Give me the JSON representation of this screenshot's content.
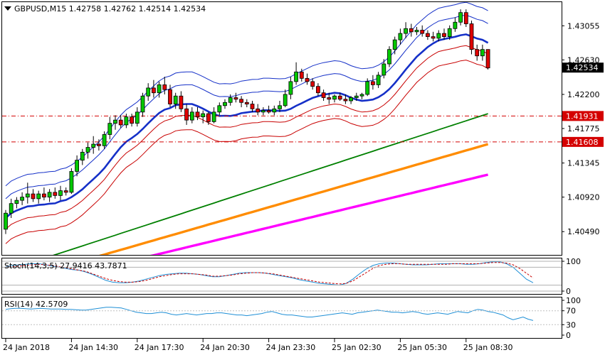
{
  "header": {
    "symbol_line": "GBPUSD,M15  1.42758 1.42762 1.42514 1.42534"
  },
  "chart_data": {
    "type": "candlestick",
    "symbol": "GBPUSD",
    "timeframe": "M15",
    "ohlc_readout": {
      "open": 1.42758,
      "high": 1.42762,
      "low": 1.42514,
      "close": 1.42534
    },
    "price_axis": {
      "range": [
        1.402,
        1.4335
      ],
      "ticks": [
        "1.43055",
        "1.42630",
        "1.42200",
        "1.41775",
        "1.41345",
        "1.40920",
        "1.40490"
      ]
    },
    "current_price": "1.42534",
    "horizontal_levels": [
      {
        "label": "1.41931",
        "value": 1.41931,
        "color": "#d40000"
      },
      {
        "label": "1.41608",
        "value": 1.41608,
        "color": "#d40000"
      }
    ],
    "time_axis": {
      "labels": [
        "24 Jan 2018",
        "24 Jan 14:30",
        "24 Jan 17:30",
        "24 Jan 20:30",
        "24 Jan 23:30",
        "25 Jan 02:30",
        "25 Jan 05:30",
        "25 Jan 08:30"
      ],
      "label_bar_index": [
        0,
        12,
        24,
        36,
        48,
        60,
        72,
        84
      ]
    },
    "colors": {
      "bull": "#00c800",
      "bear": "#e00000"
    },
    "candles": [
      [
        1.4052,
        1.4076,
        1.4046,
        1.4072
      ],
      [
        1.4072,
        1.409,
        1.4066,
        1.4084
      ],
      [
        1.4084,
        1.4092,
        1.4078,
        1.4088
      ],
      [
        1.4088,
        1.4098,
        1.4082,
        1.4092
      ],
      [
        1.4092,
        1.411,
        1.4084,
        1.4096
      ],
      [
        1.4096,
        1.4102,
        1.4086,
        1.409
      ],
      [
        1.409,
        1.41,
        1.4084,
        1.4096
      ],
      [
        1.4096,
        1.4104,
        1.4088,
        1.4092
      ],
      [
        1.4092,
        1.4102,
        1.4086,
        1.4098
      ],
      [
        1.4098,
        1.4104,
        1.409,
        1.4094
      ],
      [
        1.4094,
        1.4106,
        1.4088,
        1.41
      ],
      [
        1.41,
        1.4104,
        1.4094,
        1.4098
      ],
      [
        1.4098,
        1.4128,
        1.4096,
        1.4124
      ],
      [
        1.4124,
        1.4144,
        1.4118,
        1.4138
      ],
      [
        1.4138,
        1.4152,
        1.4132,
        1.4148
      ],
      [
        1.4148,
        1.416,
        1.414,
        1.4154
      ],
      [
        1.4154,
        1.4168,
        1.4146,
        1.4158
      ],
      [
        1.4158,
        1.4164,
        1.415,
        1.4156
      ],
      [
        1.4156,
        1.4174,
        1.4152,
        1.417
      ],
      [
        1.417,
        1.4192,
        1.4164,
        1.4184
      ],
      [
        1.4184,
        1.4194,
        1.4176,
        1.4188
      ],
      [
        1.4188,
        1.4194,
        1.4178,
        1.4182
      ],
      [
        1.4182,
        1.4196,
        1.4178,
        1.4192
      ],
      [
        1.4192,
        1.4196,
        1.418,
        1.4184
      ],
      [
        1.4184,
        1.4204,
        1.418,
        1.4198
      ],
      [
        1.4198,
        1.4222,
        1.4192,
        1.4218
      ],
      [
        1.4218,
        1.4234,
        1.4212,
        1.4228
      ],
      [
        1.4228,
        1.4238,
        1.4216,
        1.4222
      ],
      [
        1.4222,
        1.4236,
        1.4216,
        1.4232
      ],
      [
        1.4232,
        1.4242,
        1.422,
        1.4226
      ],
      [
        1.4226,
        1.4232,
        1.4204,
        1.4208
      ],
      [
        1.4208,
        1.4222,
        1.4202,
        1.4218
      ],
      [
        1.4218,
        1.4224,
        1.4198,
        1.4202
      ],
      [
        1.4202,
        1.4208,
        1.4182,
        1.4188
      ],
      [
        1.4188,
        1.4204,
        1.4184,
        1.4198
      ],
      [
        1.4198,
        1.4204,
        1.4188,
        1.4192
      ],
      [
        1.4192,
        1.42,
        1.4184,
        1.4196
      ],
      [
        1.4196,
        1.4198,
        1.4182,
        1.4186
      ],
      [
        1.4186,
        1.4204,
        1.4184,
        1.4198
      ],
      [
        1.4198,
        1.421,
        1.4194,
        1.4206
      ],
      [
        1.4206,
        1.4214,
        1.4202,
        1.421
      ],
      [
        1.421,
        1.422,
        1.4206,
        1.4216
      ],
      [
        1.4216,
        1.4222,
        1.421,
        1.4214
      ],
      [
        1.4214,
        1.4218,
        1.4204,
        1.421
      ],
      [
        1.421,
        1.4214,
        1.4204,
        1.4208
      ],
      [
        1.4208,
        1.4212,
        1.4198,
        1.4202
      ],
      [
        1.4202,
        1.4208,
        1.4194,
        1.4198
      ],
      [
        1.4198,
        1.4204,
        1.4194,
        1.42
      ],
      [
        1.42,
        1.4206,
        1.4196,
        1.4198
      ],
      [
        1.4198,
        1.4206,
        1.4194,
        1.4202
      ],
      [
        1.4202,
        1.4212,
        1.4198,
        1.4206
      ],
      [
        1.4206,
        1.4226,
        1.4204,
        1.422
      ],
      [
        1.422,
        1.4242,
        1.4214,
        1.4236
      ],
      [
        1.4236,
        1.426,
        1.4232,
        1.4248
      ],
      [
        1.4248,
        1.4252,
        1.4236,
        1.424
      ],
      [
        1.424,
        1.4246,
        1.4232,
        1.4236
      ],
      [
        1.4236,
        1.424,
        1.4226,
        1.423
      ],
      [
        1.423,
        1.4234,
        1.4218,
        1.4222
      ],
      [
        1.4222,
        1.4226,
        1.4212,
        1.4216
      ],
      [
        1.4216,
        1.4222,
        1.4208,
        1.4214
      ],
      [
        1.4214,
        1.422,
        1.421,
        1.4218
      ],
      [
        1.4218,
        1.4222,
        1.4212,
        1.4214
      ],
      [
        1.4214,
        1.422,
        1.4208,
        1.4212
      ],
      [
        1.4212,
        1.4218,
        1.4208,
        1.4216
      ],
      [
        1.4216,
        1.4222,
        1.4212,
        1.4218
      ],
      [
        1.4218,
        1.4222,
        1.4214,
        1.422
      ],
      [
        1.422,
        1.424,
        1.4218,
        1.4236
      ],
      [
        1.4236,
        1.4244,
        1.4226,
        1.4232
      ],
      [
        1.4232,
        1.4248,
        1.4228,
        1.4244
      ],
      [
        1.4244,
        1.4264,
        1.424,
        1.4258
      ],
      [
        1.4258,
        1.428,
        1.4254,
        1.4276
      ],
      [
        1.4276,
        1.4292,
        1.427,
        1.4288
      ],
      [
        1.4288,
        1.4302,
        1.4282,
        1.4296
      ],
      [
        1.4296,
        1.431,
        1.429,
        1.4302
      ],
      [
        1.4302,
        1.4308,
        1.4292,
        1.4298
      ],
      [
        1.4298,
        1.4304,
        1.4294,
        1.43
      ],
      [
        1.43,
        1.4306,
        1.4292,
        1.4296
      ],
      [
        1.4296,
        1.43,
        1.4288,
        1.4292
      ],
      [
        1.4292,
        1.4298,
        1.4286,
        1.429
      ],
      [
        1.429,
        1.43,
        1.4286,
        1.4296
      ],
      [
        1.4296,
        1.4302,
        1.4288,
        1.4292
      ],
      [
        1.4292,
        1.4306,
        1.4288,
        1.4302
      ],
      [
        1.4302,
        1.4316,
        1.4298,
        1.431
      ],
      [
        1.431,
        1.4326,
        1.4306,
        1.4322
      ],
      [
        1.4322,
        1.4326,
        1.4304,
        1.4308
      ],
      [
        1.4308,
        1.4312,
        1.427,
        1.4276
      ],
      [
        1.4276,
        1.4282,
        1.4262,
        1.4268
      ],
      [
        1.4268,
        1.4282,
        1.4262,
        1.4276
      ],
      [
        1.4276,
        1.4276,
        1.4251,
        1.4253
      ]
    ],
    "moving_averages": [
      {
        "color": "#1530c8",
        "width": 2.6,
        "start": 1.4044,
        "end": 1.427,
        "bow": 0.0008
      },
      {
        "color": "#008000",
        "width": 1.8,
        "start": 1.4,
        "end": 1.4196,
        "bow": 0.0
      },
      {
        "color": "#ff8c00",
        "width": 3.4,
        "start": 1.3985,
        "end": 1.4158,
        "bow": 0.0
      },
      {
        "color": "#ff00ff",
        "width": 3.4,
        "start": 1.3975,
        "end": 1.412,
        "bow": 0.0
      }
    ],
    "envelopes": [
      {
        "color": "#1530c8",
        "offset": 0.0012,
        "width": 1
      },
      {
        "color": "#1530c8",
        "offset": 0.0028,
        "width": 1
      },
      {
        "color": "#c80000",
        "offset": -0.0016,
        "width": 1
      },
      {
        "color": "#c80000",
        "offset": -0.0034,
        "width": 1
      }
    ],
    "stochastic": {
      "label": "Stoch(14,3,5) 27.9416 43.7871",
      "range": [
        0,
        100
      ],
      "ticks": [
        "100",
        "0"
      ],
      "main_color": "#1e8fd6",
      "signal_color": "#c80000",
      "main": [
        82,
        86,
        88,
        90,
        92,
        92,
        88,
        84,
        80,
        76,
        72,
        70,
        64,
        56,
        46,
        36,
        30,
        28,
        28,
        30,
        34,
        40,
        46,
        52,
        56,
        58,
        60,
        60,
        58,
        56,
        52,
        48,
        48,
        52,
        56,
        60,
        62,
        62,
        62,
        60,
        56,
        52,
        48,
        44,
        38,
        34,
        30,
        26,
        24,
        22,
        20,
        26,
        40,
        58,
        74,
        86,
        92,
        94,
        94,
        92,
        90,
        88,
        88,
        88,
        90,
        92,
        92,
        92,
        92,
        90,
        90,
        92,
        96,
        98,
        98,
        92,
        80,
        60,
        40,
        28
      ],
      "signal": [
        80,
        82,
        84,
        86,
        88,
        90,
        88,
        86,
        82,
        78,
        74,
        70,
        66,
        58,
        50,
        42,
        36,
        32,
        30,
        30,
        32,
        36,
        42,
        48,
        52,
        56,
        58,
        58,
        58,
        56,
        54,
        50,
        50,
        52,
        54,
        58,
        60,
        62,
        62,
        60,
        58,
        54,
        50,
        46,
        42,
        38,
        34,
        30,
        28,
        26,
        24,
        26,
        34,
        48,
        62,
        76,
        86,
        90,
        92,
        92,
        90,
        90,
        90,
        90,
        90,
        90,
        90,
        92,
        92,
        92,
        92,
        92,
        94,
        96,
        96,
        94,
        88,
        76,
        60,
        44
      ]
    },
    "rsi": {
      "label": "RSI(14) 42.5709",
      "range": [
        0,
        100
      ],
      "ticks": [
        "100",
        "70",
        "30",
        "0"
      ],
      "color": "#1e8fd6",
      "values": [
        74,
        76,
        77,
        77,
        76,
        75,
        76,
        77,
        76,
        75,
        75,
        75,
        74,
        74,
        73,
        72,
        72,
        74,
        76,
        78,
        80,
        80,
        79,
        78,
        74,
        70,
        66,
        64,
        62,
        62,
        64,
        66,
        64,
        60,
        58,
        60,
        62,
        60,
        58,
        60,
        62,
        62,
        64,
        64,
        62,
        60,
        58,
        58,
        56,
        58,
        60,
        62,
        66,
        68,
        64,
        60,
        58,
        58,
        56,
        54,
        52,
        52,
        54,
        56,
        58,
        60,
        62,
        64,
        62,
        60,
        64,
        66,
        68,
        70,
        72,
        70,
        68,
        66,
        66,
        64,
        66,
        68,
        66,
        62,
        60,
        62,
        64,
        62,
        60,
        64,
        68,
        66,
        64,
        70,
        74,
        72,
        68,
        66,
        62,
        58,
        50,
        44,
        48,
        52,
        46,
        42
      ]
    }
  }
}
